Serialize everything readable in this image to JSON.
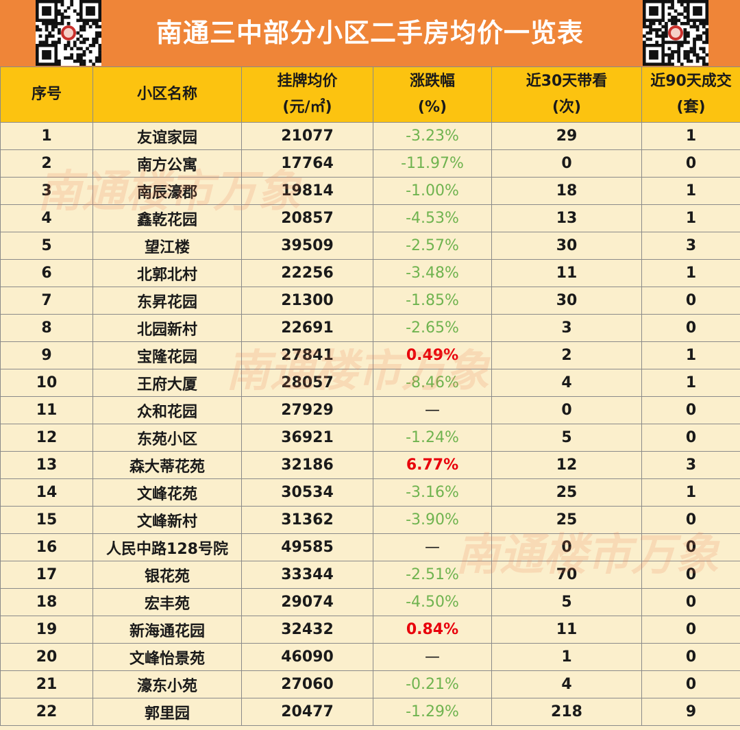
{
  "title": "南通三中部分小区二手房均价一览表",
  "headers": {
    "index": "序号",
    "name": "小区名称",
    "price_l1": "挂牌均价",
    "price_l2": "(元/㎡)",
    "change_l1": "涨跌幅",
    "change_l2": "(%)",
    "visits_l1": "近30天带看",
    "visits_l2": "(次)",
    "deals_l1": "近90天成交",
    "deals_l2": "(套)"
  },
  "watermark": "南通楼市万象",
  "rows": [
    {
      "index": "1",
      "name": "友谊家园",
      "price": "21077",
      "change": "-3.23%",
      "visits": "29",
      "deals": "1"
    },
    {
      "index": "2",
      "name": "南方公寓",
      "price": "17764",
      "change": "-11.97%",
      "visits": "0",
      "deals": "0"
    },
    {
      "index": "3",
      "name": "南辰濠郡",
      "price": "19814",
      "change": "-1.00%",
      "visits": "18",
      "deals": "1"
    },
    {
      "index": "4",
      "name": "鑫乾花园",
      "price": "20857",
      "change": "-4.53%",
      "visits": "13",
      "deals": "1"
    },
    {
      "index": "5",
      "name": "望江楼",
      "price": "39509",
      "change": "-2.57%",
      "visits": "30",
      "deals": "3"
    },
    {
      "index": "6",
      "name": "北郭北村",
      "price": "22256",
      "change": "-3.48%",
      "visits": "11",
      "deals": "1"
    },
    {
      "index": "7",
      "name": "东昇花园",
      "price": "21300",
      "change": "-1.85%",
      "visits": "30",
      "deals": "0"
    },
    {
      "index": "8",
      "name": "北园新村",
      "price": "22691",
      "change": "-2.65%",
      "visits": "3",
      "deals": "0"
    },
    {
      "index": "9",
      "name": "宝隆花园",
      "price": "27841",
      "change": "0.49%",
      "visits": "2",
      "deals": "1"
    },
    {
      "index": "10",
      "name": "王府大厦",
      "price": "28057",
      "change": "-8.46%",
      "visits": "4",
      "deals": "1"
    },
    {
      "index": "11",
      "name": "众和花园",
      "price": "27929",
      "change": "—",
      "visits": "0",
      "deals": "0"
    },
    {
      "index": "12",
      "name": "东苑小区",
      "price": "36921",
      "change": "-1.24%",
      "visits": "5",
      "deals": "0"
    },
    {
      "index": "13",
      "name": "森大蒂花苑",
      "price": "32186",
      "change": "6.77%",
      "visits": "12",
      "deals": "3"
    },
    {
      "index": "14",
      "name": "文峰花苑",
      "price": "30534",
      "change": "-3.16%",
      "visits": "25",
      "deals": "1"
    },
    {
      "index": "15",
      "name": "文峰新村",
      "price": "31362",
      "change": "-3.90%",
      "visits": "25",
      "deals": "0"
    },
    {
      "index": "16",
      "name": "人民中路128号院",
      "price": "49585",
      "change": "—",
      "visits": "0",
      "deals": "0"
    },
    {
      "index": "17",
      "name": "银花苑",
      "price": "33344",
      "change": "-2.51%",
      "visits": "70",
      "deals": "0"
    },
    {
      "index": "18",
      "name": "宏丰苑",
      "price": "29074",
      "change": "-4.50%",
      "visits": "5",
      "deals": "0"
    },
    {
      "index": "19",
      "name": "新海通花园",
      "price": "32432",
      "change": "0.84%",
      "visits": "11",
      "deals": "0"
    },
    {
      "index": "20",
      "name": "文峰怡景苑",
      "price": "46090",
      "change": "—",
      "visits": "1",
      "deals": "0"
    },
    {
      "index": "21",
      "name": "濠东小苑",
      "price": "27060",
      "change": "-0.21%",
      "visits": "4",
      "deals": "0"
    },
    {
      "index": "22",
      "name": "郭里园",
      "price": "20477",
      "change": "-1.29%",
      "visits": "218",
      "deals": "9"
    }
  ],
  "colors": {
    "header_bg": "#ef8538",
    "table_header_bg": "#fcc310",
    "row_bg": "#fbefcc",
    "negative": "#6fb34f",
    "positive": "#e8000b"
  }
}
